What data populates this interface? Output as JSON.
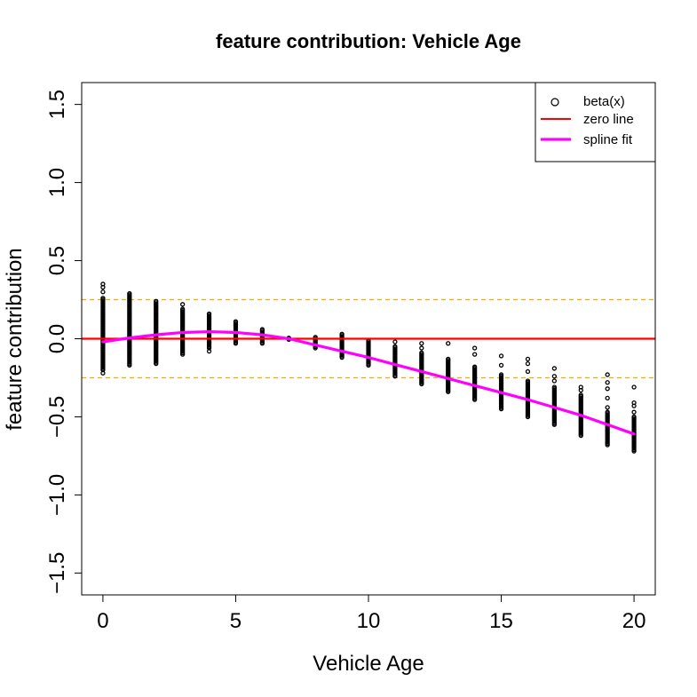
{
  "chart_data": {
    "type": "scatter",
    "title": "feature contribution: Vehicle Age",
    "xlabel": "Vehicle Age",
    "ylabel": "feature contribution",
    "xlim": [
      -0.8,
      20.8
    ],
    "ylim": [
      -1.64,
      1.64
    ],
    "xticks": [
      0,
      5,
      10,
      15,
      20
    ],
    "xtick_labels": [
      "0",
      "5",
      "10",
      "15",
      "20"
    ],
    "yticks": [
      -1.5,
      -1.0,
      -0.5,
      0.0,
      0.5,
      1.0,
      1.5
    ],
    "ytick_labels": [
      "−1.5",
      "−1.0",
      "−0.5",
      "0.0",
      "0.5",
      "1.0",
      "1.5"
    ],
    "grid": false,
    "legend_position": "top-right",
    "colors": {
      "points": "#000000",
      "zero_line": "#ff0000",
      "spline": "#ff00ff",
      "bounds": "#ffa500"
    },
    "series": [
      {
        "name": "beta(x)",
        "kind": "points",
        "groups": [
          {
            "x": 0,
            "y_min": -0.22,
            "y_max": 0.35,
            "dense_min": -0.2,
            "dense_max": 0.26,
            "outliers": [
              0.3,
              0.33,
              0.35,
              -0.22
            ]
          },
          {
            "x": 1,
            "y_min": -0.18,
            "y_max": 0.29,
            "dense_min": -0.17,
            "dense_max": 0.29,
            "outliers": []
          },
          {
            "x": 2,
            "y_min": -0.16,
            "y_max": 0.24,
            "dense_min": -0.16,
            "dense_max": 0.24,
            "outliers": []
          },
          {
            "x": 3,
            "y_min": -0.11,
            "y_max": 0.22,
            "dense_min": -0.1,
            "dense_max": 0.19,
            "outliers": [
              0.22
            ]
          },
          {
            "x": 4,
            "y_min": -0.08,
            "y_max": 0.16,
            "dense_min": -0.06,
            "dense_max": 0.16,
            "outliers": [
              -0.08
            ]
          },
          {
            "x": 5,
            "y_min": -0.04,
            "y_max": 0.11,
            "dense_min": -0.03,
            "dense_max": 0.11,
            "outliers": []
          },
          {
            "x": 6,
            "y_min": -0.03,
            "y_max": 0.06,
            "dense_min": -0.03,
            "dense_max": 0.06,
            "outliers": []
          },
          {
            "x": 7,
            "y_min": -0.01,
            "y_max": 0.01,
            "dense_min": -0.005,
            "dense_max": 0.005,
            "outliers": []
          },
          {
            "x": 8,
            "y_min": -0.06,
            "y_max": 0.02,
            "dense_min": -0.06,
            "dense_max": 0.01,
            "outliers": []
          },
          {
            "x": 9,
            "y_min": -0.13,
            "y_max": 0.04,
            "dense_min": -0.12,
            "dense_max": 0.03,
            "outliers": []
          },
          {
            "x": 10,
            "y_min": -0.18,
            "y_max": 0.0,
            "dense_min": -0.17,
            "dense_max": -0.01,
            "outliers": []
          },
          {
            "x": 11,
            "y_min": -0.25,
            "y_max": -0.02,
            "dense_min": -0.24,
            "dense_max": -0.05,
            "outliers": [
              -0.02
            ]
          },
          {
            "x": 12,
            "y_min": -0.31,
            "y_max": -0.03,
            "dense_min": -0.29,
            "dense_max": -0.09,
            "outliers": [
              -0.03,
              -0.06
            ]
          },
          {
            "x": 13,
            "y_min": -0.36,
            "y_max": -0.03,
            "dense_min": -0.34,
            "dense_max": -0.13,
            "outliers": [
              -0.03
            ]
          },
          {
            "x": 14,
            "y_min": -0.41,
            "y_max": -0.06,
            "dense_min": -0.39,
            "dense_max": -0.18,
            "outliers": [
              -0.06,
              -0.1
            ]
          },
          {
            "x": 15,
            "y_min": -0.47,
            "y_max": -0.11,
            "dense_min": -0.45,
            "dense_max": -0.23,
            "outliers": [
              -0.11,
              -0.17
            ]
          },
          {
            "x": 16,
            "y_min": -0.52,
            "y_max": -0.13,
            "dense_min": -0.5,
            "dense_max": -0.27,
            "outliers": [
              -0.13,
              -0.16,
              -0.21
            ]
          },
          {
            "x": 17,
            "y_min": -0.57,
            "y_max": -0.19,
            "dense_min": -0.55,
            "dense_max": -0.31,
            "outliers": [
              -0.19,
              -0.24,
              -0.27
            ]
          },
          {
            "x": 18,
            "y_min": -0.64,
            "y_max": -0.31,
            "dense_min": -0.62,
            "dense_max": -0.36,
            "outliers": [
              -0.31,
              -0.33
            ]
          },
          {
            "x": 19,
            "y_min": -0.7,
            "y_max": -0.23,
            "dense_min": -0.68,
            "dense_max": -0.47,
            "outliers": [
              -0.23,
              -0.28,
              -0.32,
              -0.38,
              -0.44
            ]
          },
          {
            "x": 20,
            "y_min": -0.74,
            "y_max": -0.31,
            "dense_min": -0.72,
            "dense_max": -0.5,
            "outliers": [
              -0.31,
              -0.41,
              -0.43,
              -0.47
            ]
          }
        ]
      },
      {
        "name": "zero line",
        "kind": "hline",
        "y": 0.0
      },
      {
        "name": "spline fit",
        "kind": "line",
        "x": [
          0,
          1,
          2,
          3,
          4,
          5,
          6,
          7,
          8,
          9,
          10,
          11,
          12,
          13,
          14,
          15,
          16,
          17,
          18,
          19,
          20
        ],
        "y": [
          -0.02,
          0.005,
          0.025,
          0.04,
          0.045,
          0.04,
          0.025,
          0.0,
          -0.04,
          -0.08,
          -0.12,
          -0.165,
          -0.21,
          -0.255,
          -0.3,
          -0.345,
          -0.39,
          -0.44,
          -0.49,
          -0.55,
          -0.61
        ]
      }
    ],
    "reference_lines": [
      {
        "kind": "dashed-hline",
        "y": 0.25
      },
      {
        "kind": "dashed-hline",
        "y": -0.25
      }
    ]
  }
}
